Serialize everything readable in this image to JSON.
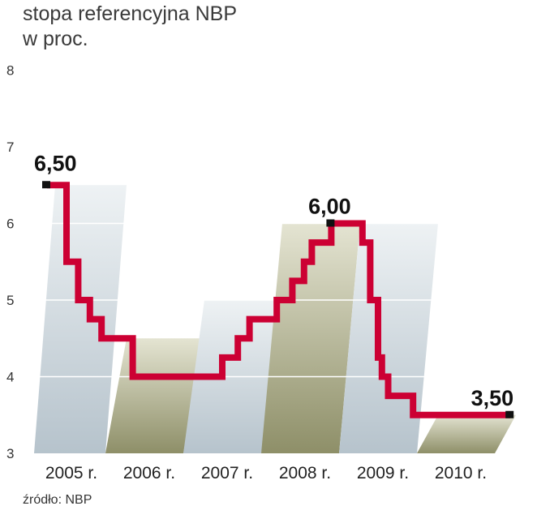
{
  "title_line1": "stopa referencyjna NBP",
  "title_line2": "w proc.",
  "source": "źródło: NBP",
  "chart_data": {
    "type": "line",
    "step": true,
    "title": "stopa referencyjna NBP w proc.",
    "ylim": [
      3,
      8
    ],
    "yticks": [
      "3",
      "4",
      "5",
      "6",
      "7",
      "8"
    ],
    "categories": [
      "2005 r.",
      "2006 r.",
      "2007 r.",
      "2008 r.",
      "2009 r.",
      "2010 r."
    ],
    "series": [
      {
        "name": "stopa referencyjna NBP",
        "color": "#cc0033",
        "points": [
          [
            0.0,
            6.5
          ],
          [
            0.25,
            6.5
          ],
          [
            0.25,
            5.5
          ],
          [
            0.4,
            5.5
          ],
          [
            0.4,
            5.0
          ],
          [
            0.55,
            5.0
          ],
          [
            0.55,
            4.75
          ],
          [
            0.7,
            4.75
          ],
          [
            0.7,
            4.5
          ],
          [
            1.1,
            4.5
          ],
          [
            1.1,
            4.0
          ],
          [
            2.25,
            4.0
          ],
          [
            2.25,
            4.25
          ],
          [
            2.45,
            4.25
          ],
          [
            2.45,
            4.5
          ],
          [
            2.6,
            4.5
          ],
          [
            2.6,
            4.75
          ],
          [
            2.95,
            4.75
          ],
          [
            2.95,
            5.0
          ],
          [
            3.15,
            5.0
          ],
          [
            3.15,
            5.25
          ],
          [
            3.3,
            5.25
          ],
          [
            3.3,
            5.5
          ],
          [
            3.4,
            5.5
          ],
          [
            3.4,
            5.75
          ],
          [
            3.65,
            5.75
          ],
          [
            3.65,
            6.0
          ],
          [
            4.05,
            6.0
          ],
          [
            4.05,
            5.75
          ],
          [
            4.15,
            5.75
          ],
          [
            4.15,
            5.0
          ],
          [
            4.25,
            5.0
          ],
          [
            4.25,
            4.25
          ],
          [
            4.3,
            4.25
          ],
          [
            4.3,
            4.0
          ],
          [
            4.38,
            4.0
          ],
          [
            4.38,
            3.75
          ],
          [
            4.7,
            3.75
          ],
          [
            4.7,
            3.5
          ],
          [
            5.95,
            3.5
          ]
        ]
      }
    ],
    "annotations": [
      {
        "text": "6,50",
        "x": 0.0,
        "y": 6.5
      },
      {
        "text": "6,00",
        "x": 3.65,
        "y": 6.0
      },
      {
        "text": "3,50",
        "x": 5.95,
        "y": 3.5
      }
    ],
    "year_band_colors": [
      "#bfcbd3",
      "#9a9b76",
      "#bfcbd3",
      "#9a9b76",
      "#bfcbd3",
      "#9a9b76"
    ]
  }
}
